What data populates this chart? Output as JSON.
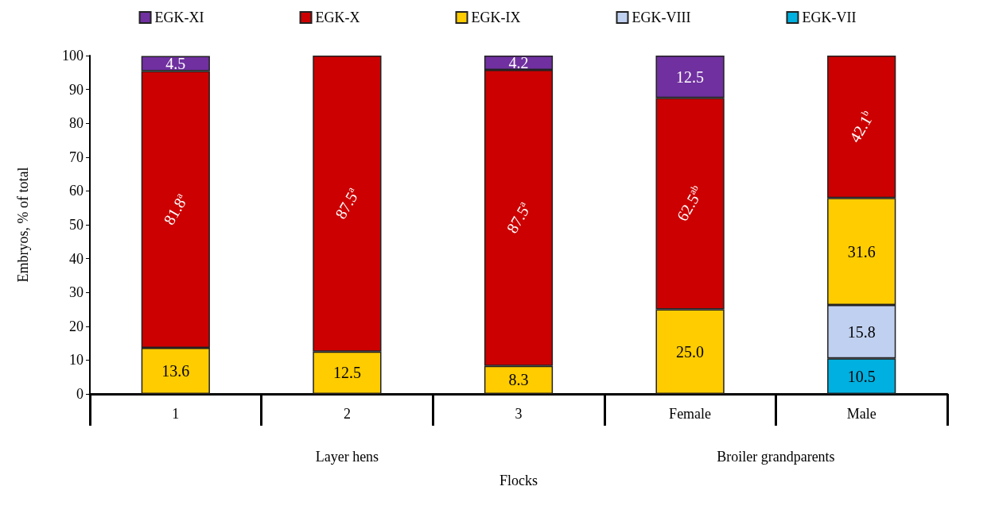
{
  "chart_data": {
    "type": "bar",
    "stacked": true,
    "xlabel": "Flocks",
    "ylabel": "Embryos, % of total",
    "categories": [
      "1",
      "2",
      "3",
      "Female",
      "Male"
    ],
    "ylim": [
      0,
      100
    ],
    "yticks": [
      0,
      10,
      20,
      30,
      40,
      50,
      60,
      70,
      80,
      90,
      100
    ],
    "legend": "top",
    "annotations": [
      "Layer hens",
      "Broiler grandparents"
    ],
    "series": [
      {
        "name": "EGK-VII",
        "color": "#00b0e0",
        "values": [
          null,
          null,
          null,
          null,
          10.5
        ],
        "value_labels": [
          null,
          null,
          null,
          null,
          "10.5"
        ]
      },
      {
        "name": "EGK-VIII",
        "color": "#c0d0f0",
        "values": [
          null,
          null,
          null,
          null,
          15.8
        ],
        "value_labels": [
          null,
          null,
          null,
          null,
          "15.8"
        ]
      },
      {
        "name": "EGK-IX",
        "color": "#ffcc00",
        "values": [
          13.6,
          12.5,
          8.3,
          25.0,
          31.6
        ],
        "value_labels": [
          "13.6",
          "12.5",
          "8.3",
          "25.0",
          "31.6"
        ]
      },
      {
        "name": "EGK-X",
        "color": "#cc0000",
        "values": [
          81.8,
          87.5,
          87.5,
          62.5,
          42.1
        ],
        "value_labels": [
          "81.8$^{a}$",
          "87.5$^{a}$",
          "87.5$^{a}$",
          "62.5$^{ab}$",
          "42.1$^{b}$"
        ]
      },
      {
        "name": "EGK-XI",
        "color": "#7030a0",
        "values": [
          4.5,
          null,
          4.2,
          12.5,
          null
        ],
        "value_labels": [
          "4.5",
          null,
          "4.2",
          "12.5",
          null
        ]
      }
    ]
  }
}
